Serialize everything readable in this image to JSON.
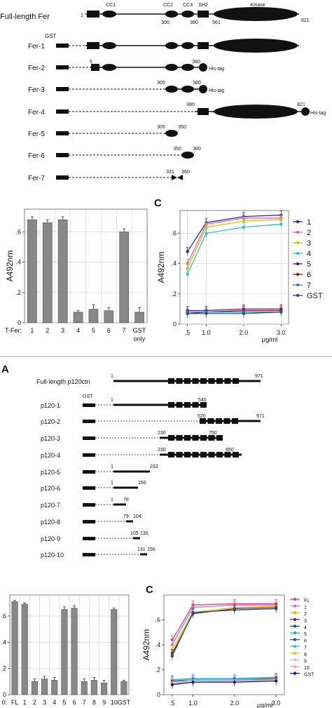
{
  "figure_top": {
    "fl_label": "Full-length Fer",
    "gst_label": "GST",
    "fl_start": "1",
    "fl_end": "821",
    "fl_numbers_below": [
      "300",
      "380",
      "561"
    ],
    "domains": [
      "CC1",
      "CC2",
      "CC3",
      "SH2",
      "Kinase"
    ],
    "his_tag": "His-tag",
    "constructs": [
      {
        "label": "Fer-1",
        "nums": []
      },
      {
        "label": "Fer-2",
        "nums": [
          "5",
          "380"
        ]
      },
      {
        "label": "Fer-3",
        "nums": [
          "305",
          "380"
        ]
      },
      {
        "label": "Fer-4",
        "nums": [
          "380",
          "821"
        ]
      },
      {
        "label": "Fer-5",
        "nums": [
          "305",
          "350"
        ]
      },
      {
        "label": "Fer-6",
        "nums": [
          "350",
          "380"
        ]
      },
      {
        "label": "Fer-7",
        "nums": [
          "331",
          "360"
        ]
      }
    ]
  },
  "figure_bottom": {
    "panel_letter": "A",
    "fl_label": "Full-length p120ctn",
    "gst_label": "GST",
    "constructs": [
      {
        "label": "p120-1",
        "nums": [
          "1",
          "540"
        ]
      },
      {
        "label": "p120-2",
        "nums": [
          "520",
          "971"
        ]
      },
      {
        "label": "p120-3",
        "nums": [
          "230",
          "750"
        ]
      },
      {
        "label": "p120-4",
        "nums": [
          "230",
          "850"
        ]
      },
      {
        "label": "p120-5",
        "nums": [
          "1",
          "232"
        ]
      },
      {
        "label": "p120-6",
        "nums": [
          "1",
          "156"
        ]
      },
      {
        "label": "p120-7",
        "nums": [
          "1",
          "78"
        ]
      },
      {
        "label": "p120-8",
        "nums": [
          "79",
          "104"
        ]
      },
      {
        "label": "p120-9",
        "nums": [
          "105",
          "130"
        ]
      },
      {
        "label": "p120-10",
        "nums": [
          "131",
          "156"
        ]
      }
    ],
    "fl_nums": [
      "1",
      "971"
    ]
  },
  "chart_data": [
    {
      "type": "bar",
      "ylabel": "A492nm",
      "xlabel_prefix": "T-Fer:",
      "categories": [
        "1",
        "2",
        "3",
        "4",
        "5",
        "6",
        "7",
        "GST only"
      ],
      "values": [
        0.68,
        0.66,
        0.68,
        0.07,
        0.09,
        0.08,
        0.6,
        0.07
      ],
      "errors": [
        0.02,
        0.02,
        0.02,
        0.01,
        0.03,
        0.02,
        0.02,
        0.03
      ],
      "ylim": [
        0,
        0.75
      ],
      "yticks": [
        "0",
        ".2",
        ".4",
        ".6"
      ],
      "grid": true,
      "bar_color": "#888888"
    },
    {
      "type": "line",
      "panel_letter": "C",
      "ylabel": "A492nm",
      "xlabel": "μg/ml",
      "x": [
        0.5,
        1.0,
        2.0,
        3.0
      ],
      "xticks": [
        ".5",
        "1.0",
        "2.0",
        "3.0"
      ],
      "yticks": [
        "0",
        ".2",
        ".4",
        ".6"
      ],
      "ylim": [
        0,
        0.75
      ],
      "grid": true,
      "legend_position": "right",
      "series": [
        {
          "name": "1",
          "values": [
            0.48,
            0.67,
            0.71,
            0.72
          ],
          "color": "#1f2f8f"
        },
        {
          "name": "2",
          "values": [
            0.4,
            0.66,
            0.7,
            0.7
          ],
          "color": "#e060b0"
        },
        {
          "name": "3",
          "values": [
            0.37,
            0.64,
            0.68,
            0.69
          ],
          "color": "#d8c200"
        },
        {
          "name": "4",
          "values": [
            0.33,
            0.6,
            0.64,
            0.66
          ],
          "color": "#30c0d0"
        },
        {
          "name": "5",
          "values": [
            0.09,
            0.09,
            0.1,
            0.1
          ],
          "color": "#6a1a5a"
        },
        {
          "name": "6",
          "values": [
            0.07,
            0.08,
            0.09,
            0.09
          ],
          "color": "#8a2010"
        },
        {
          "name": "7",
          "values": [
            0.08,
            0.08,
            0.08,
            0.08
          ],
          "color": "#3a7ad0"
        },
        {
          "name": "GST",
          "values": [
            0.07,
            0.07,
            0.07,
            0.08
          ],
          "color": "#1d5a6e"
        }
      ]
    },
    {
      "type": "bar",
      "ylabel": "",
      "xlabel_prefix": "0:",
      "categories": [
        "FL",
        "1",
        "2",
        "3",
        "4",
        "5",
        "6",
        "7",
        "8",
        "9",
        "10",
        "GST"
      ],
      "values": [
        0.71,
        0.69,
        0.1,
        0.12,
        0.11,
        0.65,
        0.66,
        0.1,
        0.11,
        0.09,
        0.65,
        0.1
      ],
      "errors": [
        0.01,
        0.01,
        0.02,
        0.02,
        0.02,
        0.02,
        0.02,
        0.02,
        0.02,
        0.02,
        0.01,
        0.01
      ],
      "ylim": [
        0,
        0.76
      ],
      "yticks": [
        "0",
        ".2",
        ".4",
        ".6"
      ],
      "grid": true,
      "bar_color": "#888888"
    },
    {
      "type": "line",
      "panel_letter": "C",
      "ylabel": "A492nm",
      "xlabel": "μg/ml",
      "x": [
        0.5,
        1.0,
        2.0,
        3.0
      ],
      "xticks": [
        ".5",
        "1.0",
        "2.0",
        "3.0"
      ],
      "yticks": [
        "0",
        ".2",
        ".4",
        ".6"
      ],
      "ylim": [
        0,
        0.8
      ],
      "grid": false,
      "legend_position": "right",
      "series": [
        {
          "name": "FL",
          "values": [
            0.44,
            0.72,
            0.73,
            0.73
          ],
          "color": "#e04080"
        },
        {
          "name": "1",
          "values": [
            0.4,
            0.7,
            0.72,
            0.72
          ],
          "color": "#d070d0"
        },
        {
          "name": "2",
          "values": [
            0.36,
            0.66,
            0.7,
            0.71
          ],
          "color": "#d8c200"
        },
        {
          "name": "3",
          "values": [
            0.33,
            0.65,
            0.69,
            0.7
          ],
          "color": "#8a2040"
        },
        {
          "name": "4",
          "values": [
            0.31,
            0.66,
            0.68,
            0.69
          ],
          "color": "#1d5a6e"
        },
        {
          "name": "5",
          "values": [
            0.12,
            0.13,
            0.13,
            0.14
          ],
          "color": "#3aa0d0"
        },
        {
          "name": "6",
          "values": [
            0.11,
            0.12,
            0.12,
            0.13
          ],
          "color": "#2a50a0"
        },
        {
          "name": "7",
          "values": [
            0.1,
            0.12,
            0.12,
            0.12
          ],
          "color": "#40c0c0"
        },
        {
          "name": "8",
          "values": [
            0.1,
            0.11,
            0.11,
            0.12
          ],
          "color": "#e8c040"
        },
        {
          "name": "9",
          "values": [
            0.09,
            0.11,
            0.11,
            0.11
          ],
          "color": "#c0c0e0"
        },
        {
          "name": "10",
          "values": [
            0.09,
            0.1,
            0.11,
            0.11
          ],
          "color": "#f0a0c0"
        },
        {
          "name": "GST",
          "values": [
            0.08,
            0.1,
            0.1,
            0.11
          ],
          "color": "#202080"
        }
      ]
    }
  ]
}
